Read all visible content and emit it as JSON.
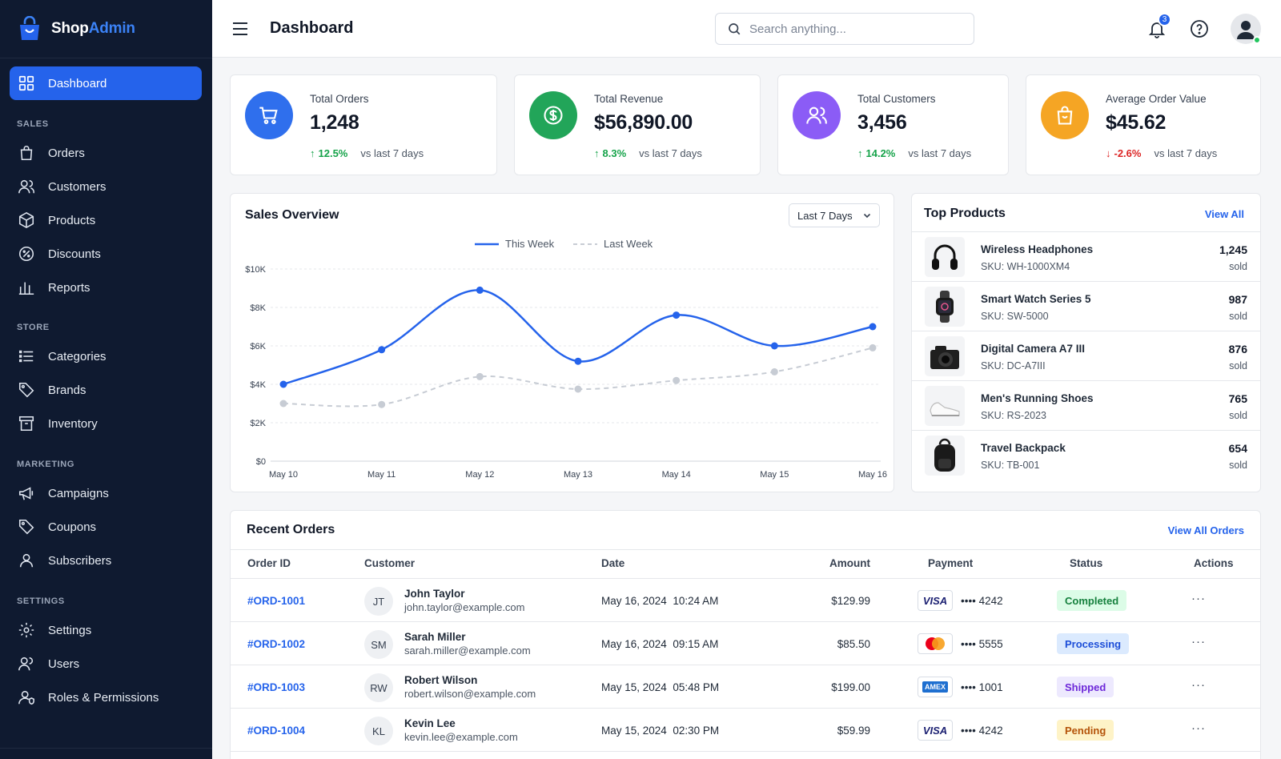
{
  "app": {
    "name_a": "Shop",
    "name_b": "Admin"
  },
  "sidebar": {
    "active": "Dashboard",
    "sections": {
      "sales": "SALES",
      "store": "STORE",
      "marketing": "MARKETING",
      "settings": "SETTINGS"
    },
    "items": {
      "dashboard": "Dashboard",
      "orders": "Orders",
      "customers": "Customers",
      "products": "Products",
      "discounts": "Discounts",
      "reports": "Reports",
      "categories": "Categories",
      "brands": "Brands",
      "inventory": "Inventory",
      "campaigns": "Campaigns",
      "coupons": "Coupons",
      "subscribers": "Subscribers",
      "settings": "Settings",
      "users": "Users",
      "roles": "Roles & Permissions"
    }
  },
  "header": {
    "title": "Dashboard",
    "search_placeholder": "Search anything...",
    "notifications": "3"
  },
  "stats": [
    {
      "label": "Total Orders",
      "value": "1,248",
      "change": "12.5%",
      "dir": "up",
      "vs": "vs last 7 days",
      "color": "#2f6fed",
      "icon": "cart-icon"
    },
    {
      "label": "Total Revenue",
      "value": "$56,890.00",
      "change": "8.3%",
      "dir": "up",
      "vs": "vs last 7 days",
      "color": "#22a559",
      "icon": "dollar-icon"
    },
    {
      "label": "Total Customers",
      "value": "3,456",
      "change": "14.2%",
      "dir": "up",
      "vs": "vs last 7 days",
      "color": "#8b5cf6",
      "icon": "users-icon"
    },
    {
      "label": "Average Order Value",
      "value": "$45.62",
      "change": "-2.6%",
      "dir": "down",
      "vs": "vs last 7 days",
      "color": "#f5a524",
      "icon": "bag-icon"
    }
  ],
  "sales_overview": {
    "title": "Sales Overview",
    "range": "Last 7 Days"
  },
  "chart_data": {
    "type": "line",
    "title": "Sales Overview",
    "categories": [
      "May 10",
      "May 11",
      "May 12",
      "May 13",
      "May 14",
      "May 15",
      "May 16"
    ],
    "y_ticks": [
      "$0",
      "$2K",
      "$4K",
      "$6K",
      "$8K",
      "$10K"
    ],
    "ylim": [
      0,
      10000
    ],
    "grid": true,
    "legend": "top-center",
    "series": [
      {
        "name": "This Week",
        "values": [
          4000,
          5800,
          8900,
          5200,
          7600,
          6000,
          7000
        ],
        "color": "#2563eb",
        "style": "solid"
      },
      {
        "name": "Last Week",
        "values": [
          3000,
          2950,
          4400,
          3750,
          4200,
          4650,
          5900
        ],
        "color": "#c7ccd4",
        "style": "dashed"
      }
    ]
  },
  "top_products": {
    "title": "Top Products",
    "view_all": "View All",
    "items": [
      {
        "name": "Wireless Headphones",
        "sku": "SKU: WH-1000XM4",
        "count": "1,245",
        "sold": "sold",
        "icon": "headphones-icon"
      },
      {
        "name": "Smart Watch Series 5",
        "sku": "SKU: SW-5000",
        "count": "987",
        "sold": "sold",
        "icon": "watch-icon"
      },
      {
        "name": "Digital Camera A7 III",
        "sku": "SKU: DC-A7III",
        "count": "876",
        "sold": "sold",
        "icon": "camera-icon"
      },
      {
        "name": "Men's Running Shoes",
        "sku": "SKU: RS-2023",
        "count": "765",
        "sold": "sold",
        "icon": "shoe-icon"
      },
      {
        "name": "Travel Backpack",
        "sku": "SKU: TB-001",
        "count": "654",
        "sold": "sold",
        "icon": "backpack-icon"
      }
    ]
  },
  "recent_orders": {
    "title": "Recent Orders",
    "view_all": "View All Orders",
    "columns": {
      "id": "Order ID",
      "customer": "Customer",
      "date": "Date",
      "amount": "Amount",
      "payment": "Payment",
      "status": "Status",
      "actions": "Actions"
    },
    "rows": [
      {
        "id": "#ORD-1001",
        "initials": "JT",
        "name": "John Taylor",
        "email": "john.taylor@example.com",
        "date": "May 16, 2024",
        "time": "10:24 AM",
        "amount": "$129.99",
        "card": "visa",
        "last4": "•••• 4242",
        "status": "Completed",
        "status_bg": "#dcfce7",
        "status_fg": "#15803d"
      },
      {
        "id": "#ORD-1002",
        "initials": "SM",
        "name": "Sarah Miller",
        "email": "sarah.miller@example.com",
        "date": "May 16, 2024",
        "time": "09:15 AM",
        "amount": "$85.50",
        "card": "mastercard",
        "last4": "•••• 5555",
        "status": "Processing",
        "status_bg": "#dbeafe",
        "status_fg": "#1d4ed8"
      },
      {
        "id": "#ORD-1003",
        "initials": "RW",
        "name": "Robert Wilson",
        "email": "robert.wilson@example.com",
        "date": "May 15, 2024",
        "time": "05:48 PM",
        "amount": "$199.00",
        "card": "amex",
        "last4": "•••• 1001",
        "status": "Shipped",
        "status_bg": "#ede9fe",
        "status_fg": "#6d28d9"
      },
      {
        "id": "#ORD-1004",
        "initials": "KL",
        "name": "Kevin Lee",
        "email": "kevin.lee@example.com",
        "date": "May 15, 2024",
        "time": "02:30 PM",
        "amount": "$59.99",
        "card": "visa",
        "last4": "•••• 4242",
        "status": "Pending",
        "status_bg": "#fef3c7",
        "status_fg": "#b45309"
      }
    ],
    "card_labels": {
      "visa": "VISA",
      "amex": "AMEX"
    },
    "actions_glyph": "···"
  }
}
